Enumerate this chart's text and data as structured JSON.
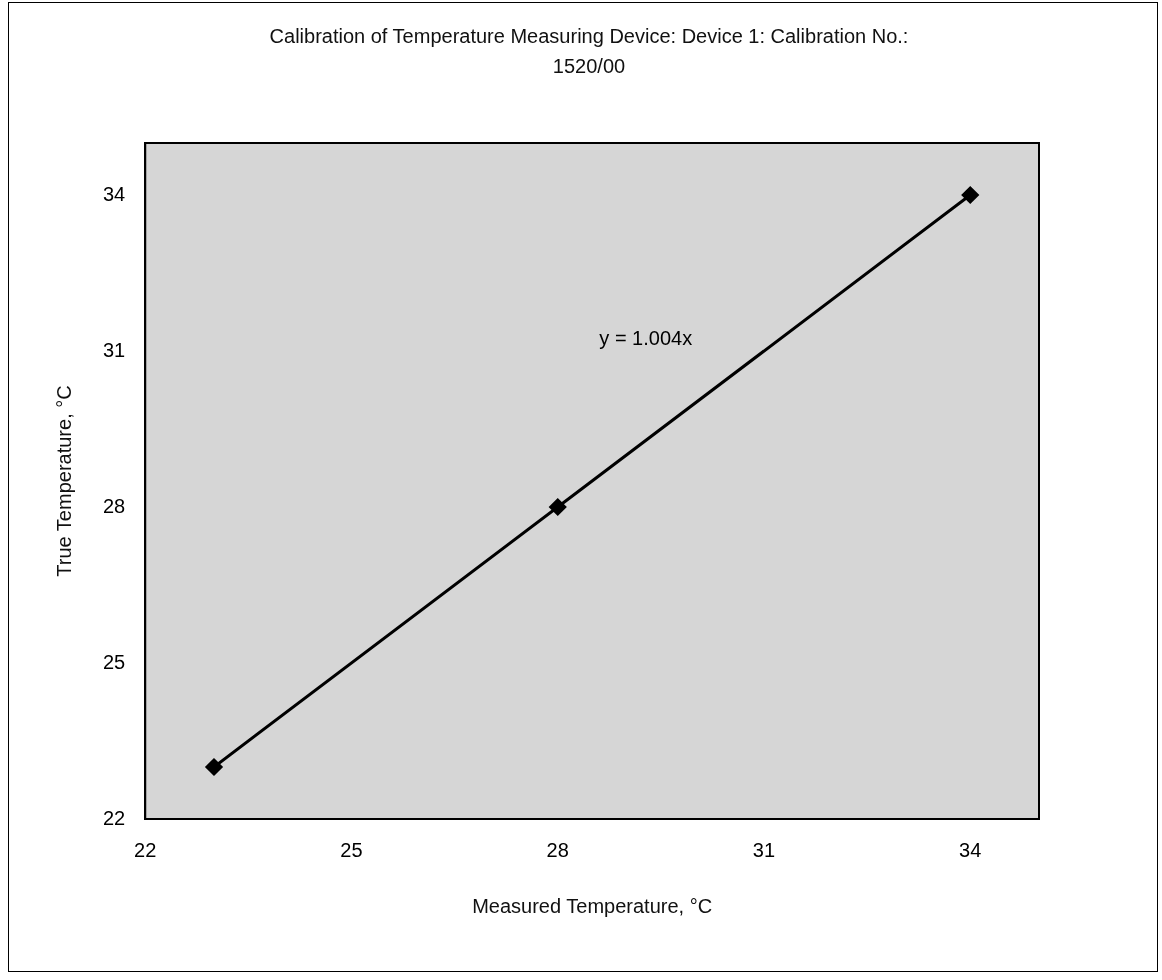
{
  "chart_data": {
    "type": "line",
    "title": "Calibration of Temperature Measuring Device:  Device 1: Calibration No.: 1520/00",
    "xlabel": "Measured Temperature, °C",
    "ylabel": "True Temperature, °C",
    "x": [
      23,
      28,
      34
    ],
    "series": [
      {
        "color": "#000000",
        "values": [
          23,
          28,
          34
        ]
      }
    ],
    "xlim": [
      22,
      35
    ],
    "ylim": [
      22,
      35
    ],
    "xticks": [
      22,
      25,
      28,
      31,
      34
    ],
    "yticks": [
      22,
      25,
      28,
      31,
      34
    ],
    "grid": false,
    "legend": false,
    "marker": "diamond",
    "line_style": "solid",
    "annotations": [
      "y = 1.004x"
    ]
  }
}
